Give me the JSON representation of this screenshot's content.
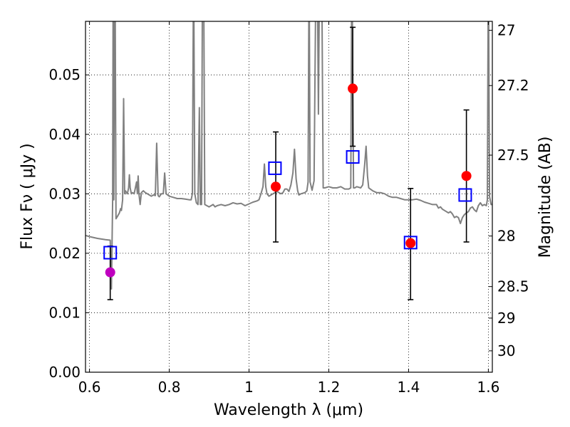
{
  "chart_data": {
    "type": "scatter",
    "xlabel": "Wavelength  λ (μm)",
    "ylabel": "Flux  Fν  ( μJy )",
    "y2label": "Magnitude (AB)",
    "xlim": [
      0.59,
      1.61
    ],
    "ylim": [
      0.0,
      0.059
    ],
    "grid": true,
    "x_ticks": [
      0.6,
      0.8,
      1.0,
      1.2,
      1.4,
      1.6
    ],
    "x_tick_labels": [
      "0.6",
      "0.8",
      "1",
      "1.2",
      "1.4",
      "1.6"
    ],
    "y_ticks": [
      0.0,
      0.01,
      0.02,
      0.03,
      0.04,
      0.05
    ],
    "y_tick_labels": [
      "0.00",
      "0.01",
      "0.02",
      "0.03",
      "0.04",
      "0.05"
    ],
    "y2_ticks": [
      {
        "label": "27",
        "flux": 0.0575
      },
      {
        "label": "27.2",
        "flux": 0.0482
      },
      {
        "label": "27.5",
        "flux": 0.0365
      },
      {
        "label": "28",
        "flux": 0.0229
      },
      {
        "label": "28.5",
        "flux": 0.0144
      },
      {
        "label": "29",
        "flux": 0.0091
      },
      {
        "label": "30",
        "flux": 0.0036
      }
    ],
    "series": [
      {
        "kind": "spectrum",
        "color": "#808080",
        "points": [
          [
            0.59,
            0.023
          ],
          [
            0.6,
            0.0228
          ],
          [
            0.62,
            0.0225
          ],
          [
            0.64,
            0.0223
          ],
          [
            0.652,
            0.0222
          ],
          [
            0.655,
            0.014
          ],
          [
            0.658,
            0.029
          ],
          [
            0.6595,
            0.07
          ],
          [
            0.661,
            0.029
          ],
          [
            0.664,
            0.07
          ],
          [
            0.6665,
            0.0258
          ],
          [
            0.67,
            0.0262
          ],
          [
            0.675,
            0.0268
          ],
          [
            0.678,
            0.0275
          ],
          [
            0.68,
            0.0272
          ],
          [
            0.683,
            0.029
          ],
          [
            0.6855,
            0.046
          ],
          [
            0.688,
            0.03
          ],
          [
            0.69,
            0.0305
          ],
          [
            0.695,
            0.03
          ],
          [
            0.698,
            0.031
          ],
          [
            0.7,
            0.0332
          ],
          [
            0.702,
            0.031
          ],
          [
            0.705,
            0.03
          ],
          [
            0.708,
            0.0302
          ],
          [
            0.712,
            0.03
          ],
          [
            0.715,
            0.031
          ],
          [
            0.718,
            0.032
          ],
          [
            0.72,
            0.03
          ],
          [
            0.722,
            0.033
          ],
          [
            0.724,
            0.03
          ],
          [
            0.727,
            0.0282
          ],
          [
            0.73,
            0.0302
          ],
          [
            0.735,
            0.0305
          ],
          [
            0.74,
            0.0302
          ],
          [
            0.745,
            0.03
          ],
          [
            0.75,
            0.0298
          ],
          [
            0.755,
            0.0296
          ],
          [
            0.76,
            0.0298
          ],
          [
            0.765,
            0.0297
          ],
          [
            0.7685,
            0.0385
          ],
          [
            0.772,
            0.0297
          ],
          [
            0.775,
            0.0295
          ],
          [
            0.78,
            0.03
          ],
          [
            0.785,
            0.03
          ],
          [
            0.7885,
            0.0335
          ],
          [
            0.792,
            0.03
          ],
          [
            0.8,
            0.0296
          ],
          [
            0.81,
            0.0294
          ],
          [
            0.82,
            0.0292
          ],
          [
            0.83,
            0.0292
          ],
          [
            0.84,
            0.0291
          ],
          [
            0.85,
            0.029
          ],
          [
            0.855,
            0.029
          ],
          [
            0.858,
            0.03
          ],
          [
            0.861,
            0.07
          ],
          [
            0.864,
            0.03
          ],
          [
            0.868,
            0.0285
          ],
          [
            0.872,
            0.0282
          ],
          [
            0.8755,
            0.0445
          ],
          [
            0.878,
            0.0282
          ],
          [
            0.881,
            0.0282
          ],
          [
            0.8835,
            0.07
          ],
          [
            0.886,
            0.07
          ],
          [
            0.889,
            0.0282
          ],
          [
            0.9,
            0.0278
          ],
          [
            0.905,
            0.028
          ],
          [
            0.91,
            0.0282
          ],
          [
            0.915,
            0.0278
          ],
          [
            0.92,
            0.028
          ],
          [
            0.93,
            0.0282
          ],
          [
            0.94,
            0.028
          ],
          [
            0.95,
            0.0282
          ],
          [
            0.96,
            0.0285
          ],
          [
            0.97,
            0.0283
          ],
          [
            0.98,
            0.0284
          ],
          [
            0.99,
            0.028
          ],
          [
            1.0,
            0.0283
          ],
          [
            1.01,
            0.0286
          ],
          [
            1.02,
            0.0288
          ],
          [
            1.025,
            0.029
          ],
          [
            1.03,
            0.03
          ],
          [
            1.035,
            0.0312
          ],
          [
            1.0385,
            0.035
          ],
          [
            1.042,
            0.0312
          ],
          [
            1.045,
            0.03
          ],
          [
            1.05,
            0.0296
          ],
          [
            1.06,
            0.03
          ],
          [
            1.07,
            0.0304
          ],
          [
            1.08,
            0.03
          ],
          [
            1.085,
            0.0302
          ],
          [
            1.09,
            0.0308
          ],
          [
            1.095,
            0.0308
          ],
          [
            1.1,
            0.0304
          ],
          [
            1.105,
            0.0315
          ],
          [
            1.11,
            0.0335
          ],
          [
            1.114,
            0.0375
          ],
          [
            1.118,
            0.0325
          ],
          [
            1.122,
            0.0305
          ],
          [
            1.125,
            0.0298
          ],
          [
            1.13,
            0.03
          ],
          [
            1.14,
            0.0302
          ],
          [
            1.145,
            0.0305
          ],
          [
            1.148,
            0.032
          ],
          [
            1.1505,
            0.07
          ],
          [
            1.153,
            0.032
          ],
          [
            1.158,
            0.0306
          ],
          [
            1.163,
            0.0322
          ],
          [
            1.168,
            0.07
          ],
          [
            1.171,
            0.07
          ],
          [
            1.174,
            0.0434
          ],
          [
            1.177,
            0.07
          ],
          [
            1.182,
            0.07
          ],
          [
            1.186,
            0.031
          ],
          [
            1.19,
            0.031
          ],
          [
            1.2,
            0.0312
          ],
          [
            1.21,
            0.031
          ],
          [
            1.22,
            0.031
          ],
          [
            1.23,
            0.0312
          ],
          [
            1.24,
            0.0308
          ],
          [
            1.25,
            0.0308
          ],
          [
            1.255,
            0.031
          ],
          [
            1.258,
            0.07
          ],
          [
            1.262,
            0.031
          ],
          [
            1.265,
            0.031
          ],
          [
            1.27,
            0.0312
          ],
          [
            1.28,
            0.031
          ],
          [
            1.285,
            0.0315
          ],
          [
            1.29,
            0.035
          ],
          [
            1.2935,
            0.038
          ],
          [
            1.297,
            0.033
          ],
          [
            1.3,
            0.031
          ],
          [
            1.31,
            0.0305
          ],
          [
            1.32,
            0.0302
          ],
          [
            1.33,
            0.0302
          ],
          [
            1.34,
            0.03
          ],
          [
            1.35,
            0.0296
          ],
          [
            1.36,
            0.0294
          ],
          [
            1.37,
            0.0294
          ],
          [
            1.38,
            0.0292
          ],
          [
            1.39,
            0.029
          ],
          [
            1.4,
            0.029
          ],
          [
            1.41,
            0.029
          ],
          [
            1.42,
            0.0291
          ],
          [
            1.43,
            0.0289
          ],
          [
            1.44,
            0.0286
          ],
          [
            1.45,
            0.0284
          ],
          [
            1.46,
            0.0282
          ],
          [
            1.47,
            0.0282
          ],
          [
            1.475,
            0.0276
          ],
          [
            1.48,
            0.0278
          ],
          [
            1.485,
            0.0274
          ],
          [
            1.49,
            0.0272
          ],
          [
            1.5,
            0.0268
          ],
          [
            1.505,
            0.027
          ],
          [
            1.51,
            0.0266
          ],
          [
            1.515,
            0.026
          ],
          [
            1.52,
            0.0262
          ],
          [
            1.525,
            0.026
          ],
          [
            1.53,
            0.025
          ],
          [
            1.535,
            0.026
          ],
          [
            1.54,
            0.0265
          ],
          [
            1.545,
            0.0268
          ],
          [
            1.55,
            0.027
          ],
          [
            1.555,
            0.0276
          ],
          [
            1.56,
            0.0278
          ],
          [
            1.565,
            0.0273
          ],
          [
            1.57,
            0.027
          ],
          [
            1.575,
            0.028
          ],
          [
            1.58,
            0.0285
          ],
          [
            1.585,
            0.028
          ],
          [
            1.59,
            0.0282
          ],
          [
            1.595,
            0.028
          ],
          [
            1.5975,
            0.029
          ],
          [
            1.6,
            0.07
          ],
          [
            1.603,
            0.0295
          ],
          [
            1.607,
            0.0282
          ],
          [
            1.61,
            0.0282
          ]
        ]
      },
      {
        "kind": "observed",
        "marker": "filled-circle",
        "points": [
          {
            "x": 0.652,
            "y": 0.0168,
            "err": [
              0.0122,
              0.0212
            ],
            "color": "#bf00bf"
          },
          {
            "x": 1.067,
            "y": 0.0312,
            "err": [
              0.0219,
              0.0404
            ],
            "color": "#ff0000"
          },
          {
            "x": 1.26,
            "y": 0.0477,
            "err": [
              0.038,
              0.058
            ],
            "color": "#ff0000"
          },
          {
            "x": 1.405,
            "y": 0.0217,
            "err": [
              0.0122,
              0.0309
            ],
            "color": "#ff0000"
          },
          {
            "x": 1.545,
            "y": 0.033,
            "err": [
              0.0219,
              0.0441
            ],
            "color": "#ff0000"
          }
        ]
      },
      {
        "kind": "model",
        "marker": "open-square",
        "color": "#0000ff",
        "points": [
          {
            "x": 0.652,
            "y": 0.0201
          },
          {
            "x": 1.065,
            "y": 0.0343
          },
          {
            "x": 1.26,
            "y": 0.0362
          },
          {
            "x": 1.405,
            "y": 0.0218
          },
          {
            "x": 1.542,
            "y": 0.0298
          }
        ]
      }
    ]
  }
}
